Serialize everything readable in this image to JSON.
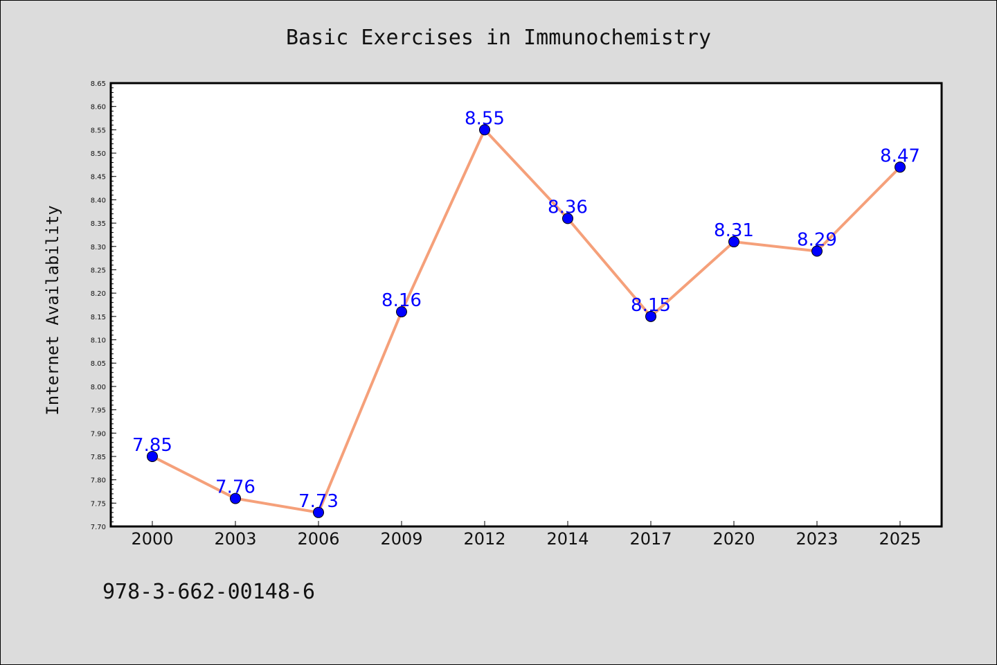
{
  "footer": {
    "isbn": "978-3-662-00148-6"
  },
  "colors": {
    "line": "#f5a07a",
    "marker": "#0000ff",
    "label": "#0000ff",
    "background": "#dcdcdc",
    "plot_area": "#ffffff"
  },
  "chart_data": {
    "type": "line",
    "title": "Basic Exercises in Immunochemistry",
    "xlabel": "",
    "ylabel": "Internet Availability",
    "categories": [
      "2000",
      "2003",
      "2006",
      "2009",
      "2012",
      "2014",
      "2017",
      "2020",
      "2023",
      "2025"
    ],
    "series": [
      {
        "values": [
          7.85,
          7.76,
          7.73,
          8.16,
          8.55,
          8.36,
          8.15,
          8.31,
          8.29,
          8.47
        ]
      }
    ],
    "data_labels": [
      "7.85",
      "7.76",
      "7.73",
      "8.16",
      "8.55",
      "8.36",
      "8.15",
      "8.31",
      "8.29",
      "8.47"
    ],
    "ylim": [
      7.7,
      8.65
    ],
    "yticks": [
      "7.70",
      "7.75",
      "7.80",
      "7.85",
      "7.90",
      "7.95",
      "8.00",
      "8.05",
      "8.10",
      "8.15",
      "8.20",
      "8.25",
      "8.30",
      "8.35",
      "8.40",
      "8.45",
      "8.50",
      "8.55",
      "8.60",
      "8.65"
    ],
    "grid": false,
    "legend": "none"
  }
}
